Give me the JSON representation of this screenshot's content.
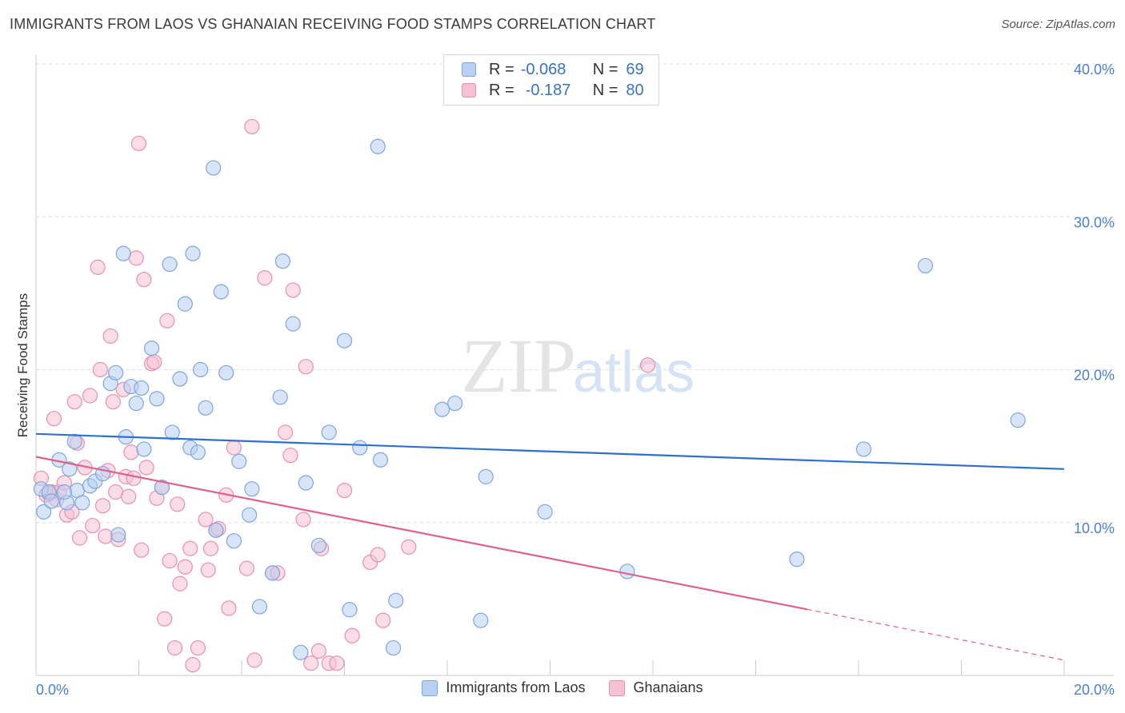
{
  "header": {
    "title": "IMMIGRANTS FROM LAOS VS GHANAIAN RECEIVING FOOD STAMPS CORRELATION CHART",
    "source": "Source: ZipAtlas.com"
  },
  "watermark": {
    "zip": "ZIP",
    "atlas": "atlas"
  },
  "stats_legend": {
    "rows": [
      {
        "r_label": "R =",
        "r_value": "-0.068",
        "n_label": "N =",
        "n_value": "69"
      },
      {
        "r_label": "R =",
        "r_value": "-0.187",
        "n_label": "N =",
        "n_value": "80"
      }
    ]
  },
  "colors": {
    "laos_fill": "#b8d0f2",
    "laos_stroke": "#7fa6dc",
    "laos_line": "#2f6fcf",
    "ghana_fill": "#f6c1d2",
    "ghana_stroke": "#e891af",
    "ghana_line": "#e0608e",
    "tick_text": "#4a7fd0",
    "grid": "#dddddd"
  },
  "chart_data": {
    "type": "scatter",
    "title": "IMMIGRANTS FROM LAOS VS GHANAIAN RECEIVING FOOD STAMPS CORRELATION CHART",
    "xlabel": "",
    "ylabel": "Receiving Food Stamps",
    "xlim": [
      0,
      20
    ],
    "ylim": [
      0,
      40
    ],
    "x_tick_labels": [
      "0.0%",
      "20.0%"
    ],
    "y_tick_labels": [
      "10.0%",
      "20.0%",
      "30.0%",
      "40.0%"
    ],
    "y_ticks": [
      10,
      20,
      30,
      40
    ],
    "grid": true,
    "legend_placement": "bottom-center",
    "series": [
      {
        "name": "Immigrants from Laos",
        "color": "#b8d0f2",
        "r": -0.068,
        "n": 69,
        "trend": {
          "x": [
            0,
            20
          ],
          "y": [
            15.8,
            13.5
          ],
          "dashed_from": null
        },
        "points": [
          [
            0.1,
            12.2
          ],
          [
            0.15,
            10.7
          ],
          [
            0.25,
            12.0
          ],
          [
            0.3,
            11.4
          ],
          [
            0.45,
            14.1
          ],
          [
            0.6,
            11.3
          ],
          [
            0.65,
            13.5
          ],
          [
            0.75,
            15.3
          ],
          [
            0.8,
            12.1
          ],
          [
            0.9,
            11.3
          ],
          [
            1.05,
            12.4
          ],
          [
            1.15,
            12.7
          ],
          [
            1.3,
            13.2
          ],
          [
            1.45,
            19.1
          ],
          [
            1.55,
            19.8
          ],
          [
            1.6,
            9.2
          ],
          [
            1.7,
            27.6
          ],
          [
            1.75,
            15.6
          ],
          [
            1.85,
            18.9
          ],
          [
            1.95,
            17.8
          ],
          [
            2.05,
            18.8
          ],
          [
            2.1,
            14.8
          ],
          [
            2.25,
            21.4
          ],
          [
            2.35,
            18.1
          ],
          [
            2.45,
            12.3
          ],
          [
            2.6,
            26.9
          ],
          [
            2.65,
            15.9
          ],
          [
            2.8,
            19.4
          ],
          [
            2.9,
            24.3
          ],
          [
            3.0,
            14.9
          ],
          [
            3.15,
            14.6
          ],
          [
            3.05,
            27.6
          ],
          [
            3.2,
            20.0
          ],
          [
            3.3,
            17.5
          ],
          [
            3.45,
            33.2
          ],
          [
            3.5,
            9.5
          ],
          [
            3.6,
            25.1
          ],
          [
            3.7,
            19.8
          ],
          [
            3.85,
            8.8
          ],
          [
            3.95,
            14.0
          ],
          [
            4.15,
            10.5
          ],
          [
            4.2,
            12.2
          ],
          [
            4.35,
            4.5
          ],
          [
            4.6,
            6.7
          ],
          [
            4.75,
            18.2
          ],
          [
            4.8,
            27.1
          ],
          [
            5.0,
            23.0
          ],
          [
            5.15,
            1.5
          ],
          [
            5.25,
            12.6
          ],
          [
            5.5,
            8.5
          ],
          [
            5.7,
            15.9
          ],
          [
            6.0,
            21.9
          ],
          [
            6.1,
            4.3
          ],
          [
            6.3,
            14.9
          ],
          [
            6.65,
            34.6
          ],
          [
            6.7,
            14.1
          ],
          [
            6.95,
            1.8
          ],
          [
            7.0,
            4.9
          ],
          [
            7.9,
            17.4
          ],
          [
            8.15,
            17.8
          ],
          [
            8.65,
            3.6
          ],
          [
            8.75,
            13.0
          ],
          [
            9.9,
            10.7
          ],
          [
            11.5,
            6.8
          ],
          [
            14.8,
            7.6
          ],
          [
            16.1,
            14.8
          ],
          [
            17.3,
            26.8
          ],
          [
            19.1,
            16.7
          ],
          [
            0.55,
            12.0
          ]
        ]
      },
      {
        "name": "Ghanaians",
        "color": "#f6c1d2",
        "r": -0.187,
        "n": 80,
        "trend": {
          "x": [
            0,
            20
          ],
          "y": [
            14.3,
            1.0
          ],
          "dashed_from": 15.0
        },
        "points": [
          [
            0.1,
            12.9
          ],
          [
            0.2,
            11.8
          ],
          [
            0.3,
            12.0
          ],
          [
            0.4,
            11.5
          ],
          [
            0.35,
            16.8
          ],
          [
            0.45,
            12.0
          ],
          [
            0.55,
            12.6
          ],
          [
            0.6,
            10.5
          ],
          [
            0.7,
            10.7
          ],
          [
            0.75,
            17.9
          ],
          [
            0.8,
            15.2
          ],
          [
            0.85,
            9.0
          ],
          [
            0.95,
            13.6
          ],
          [
            1.05,
            18.3
          ],
          [
            1.1,
            9.8
          ],
          [
            1.2,
            26.7
          ],
          [
            1.25,
            20.0
          ],
          [
            1.3,
            11.1
          ],
          [
            1.35,
            9.1
          ],
          [
            1.4,
            13.4
          ],
          [
            1.45,
            22.2
          ],
          [
            1.5,
            17.9
          ],
          [
            1.55,
            12.0
          ],
          [
            1.6,
            8.9
          ],
          [
            1.7,
            18.7
          ],
          [
            1.75,
            13.0
          ],
          [
            1.8,
            11.7
          ],
          [
            1.85,
            14.6
          ],
          [
            1.95,
            27.3
          ],
          [
            2.0,
            34.8
          ],
          [
            2.05,
            8.2
          ],
          [
            2.1,
            25.9
          ],
          [
            2.15,
            13.6
          ],
          [
            2.25,
            20.4
          ],
          [
            2.3,
            20.5
          ],
          [
            2.35,
            11.6
          ],
          [
            2.45,
            12.3
          ],
          [
            2.5,
            3.7
          ],
          [
            2.55,
            23.2
          ],
          [
            2.6,
            7.5
          ],
          [
            2.7,
            1.8
          ],
          [
            2.8,
            6.0
          ],
          [
            2.9,
            7.1
          ],
          [
            3.0,
            8.3
          ],
          [
            3.05,
            0.7
          ],
          [
            3.15,
            1.8
          ],
          [
            3.3,
            10.2
          ],
          [
            3.35,
            6.9
          ],
          [
            3.4,
            8.3
          ],
          [
            3.5,
            9.5
          ],
          [
            3.7,
            11.8
          ],
          [
            3.75,
            4.4
          ],
          [
            3.85,
            14.9
          ],
          [
            4.1,
            7.0
          ],
          [
            4.2,
            35.9
          ],
          [
            4.25,
            1.0
          ],
          [
            4.45,
            26.0
          ],
          [
            4.6,
            6.7
          ],
          [
            4.7,
            6.7
          ],
          [
            4.85,
            15.9
          ],
          [
            4.95,
            14.4
          ],
          [
            5.0,
            25.2
          ],
          [
            5.2,
            10.2
          ],
          [
            5.25,
            20.2
          ],
          [
            5.35,
            0.8
          ],
          [
            5.5,
            1.6
          ],
          [
            5.55,
            8.3
          ],
          [
            5.7,
            0.8
          ],
          [
            5.85,
            0.8
          ],
          [
            6.0,
            12.1
          ],
          [
            6.15,
            2.6
          ],
          [
            6.5,
            7.4
          ],
          [
            6.65,
            7.9
          ],
          [
            6.75,
            3.6
          ],
          [
            7.25,
            8.4
          ],
          [
            11.9,
            20.3
          ],
          [
            1.9,
            12.9
          ],
          [
            2.75,
            11.2
          ],
          [
            0.25,
            11.9
          ],
          [
            3.55,
            9.6
          ]
        ]
      }
    ]
  },
  "bottom_legend": {
    "items": [
      {
        "label": "Immigrants from Laos"
      },
      {
        "label": "Ghanaians"
      }
    ]
  }
}
